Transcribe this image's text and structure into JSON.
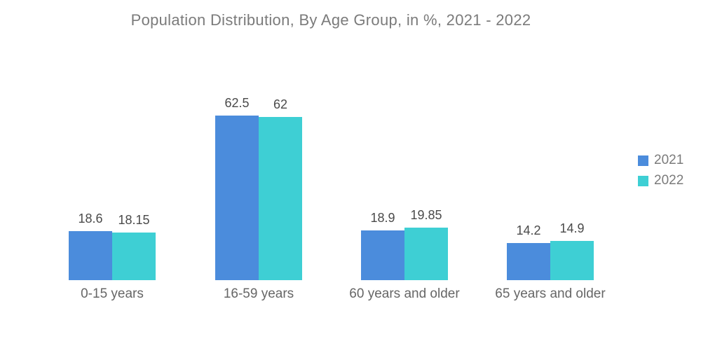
{
  "chart_data": {
    "type": "bar",
    "title": "Population Distribution, By Age Group, in %, 2021 - 2022",
    "categories": [
      "0-15 years",
      "16-59 years",
      "60 years and older",
      "65 years and older"
    ],
    "series": [
      {
        "name": "2021",
        "color": "#4B8CDC",
        "values": [
          18.6,
          62.5,
          18.9,
          14.2
        ]
      },
      {
        "name": "2022",
        "color": "#3ECFD4",
        "values": [
          18.15,
          62,
          19.85,
          14.9
        ]
      }
    ],
    "value_labels": [
      [
        "18.6",
        "18.15"
      ],
      [
        "62.5",
        "62"
      ],
      [
        "18.9",
        "19.85"
      ],
      [
        "14.2",
        "14.9"
      ]
    ],
    "xlabel": "",
    "ylabel": "",
    "ylim": [
      0,
      67
    ],
    "grid": false,
    "axes_visible": false,
    "legend_position": "right"
  }
}
